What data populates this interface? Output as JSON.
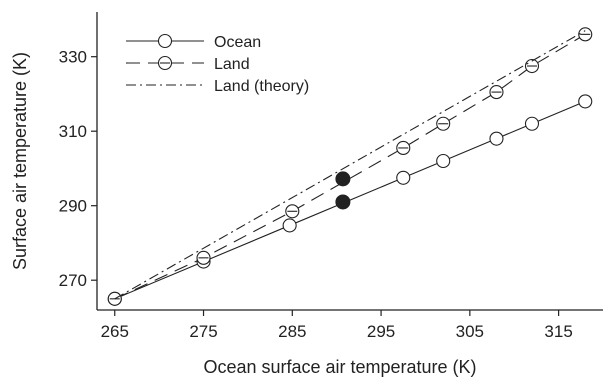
{
  "chart_data": {
    "type": "line",
    "title": "",
    "xlabel": "Ocean surface air temperature (K)",
    "ylabel": "Surface air temperature (K)",
    "xlim": [
      263,
      320
    ],
    "ylim": [
      262,
      342
    ],
    "xticks": [
      265,
      275,
      285,
      295,
      305,
      315
    ],
    "yticks": [
      270,
      290,
      310,
      330
    ],
    "grid": false,
    "legend_position": "top-left",
    "series": [
      {
        "name": "Ocean",
        "style": "solid",
        "marker": "circle",
        "x": [
          265,
          275,
          284.7,
          297.5,
          302,
          308,
          312,
          318
        ],
        "y": [
          265,
          275,
          284.7,
          297.5,
          302,
          308,
          312,
          318
        ]
      },
      {
        "name": "Land",
        "style": "dashed",
        "marker": "circle-dash",
        "x": [
          265,
          275,
          285,
          297.5,
          302,
          308,
          312,
          318
        ],
        "y": [
          265,
          276,
          288.5,
          305.5,
          312,
          320.5,
          327.5,
          336
        ]
      },
      {
        "name": "Land (theory)",
        "style": "dashdot",
        "marker": "none",
        "x": [
          265,
          318
        ],
        "y": [
          265,
          337
        ]
      }
    ],
    "highlight_points": [
      {
        "x": 290.7,
        "y": 297.2
      },
      {
        "x": 290.7,
        "y": 291
      }
    ]
  }
}
